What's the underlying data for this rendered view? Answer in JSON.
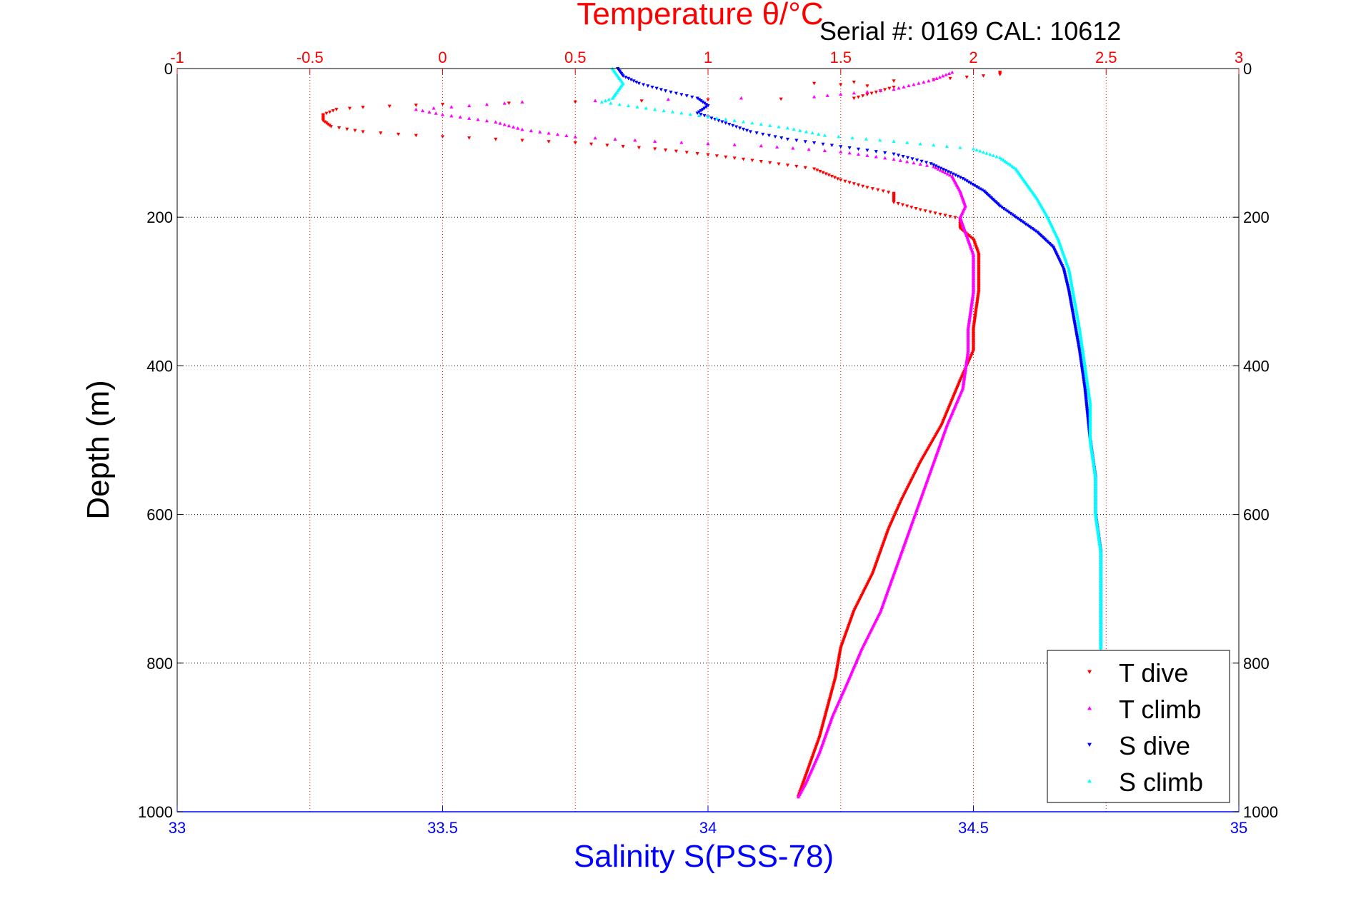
{
  "chart_data": {
    "type": "scatter",
    "title": "Temperature θ/°C",
    "subtitle": "Serial #: 0169 CAL: 10612",
    "xlabel": "Salinity S(PSS-78)",
    "x2label": "Temperature θ/°C",
    "ylabel": "Depth (m)",
    "xlim": [
      33,
      35
    ],
    "x2lim": [
      -1,
      3
    ],
    "ylim": [
      0,
      1000
    ],
    "y_reversed": true,
    "xticks": [
      "33",
      "33.5",
      "34",
      "34.5",
      "35"
    ],
    "x2ticks": [
      "-1",
      "-0.5",
      "0",
      "0.5",
      "1",
      "1.5",
      "2",
      "2.5",
      "3"
    ],
    "yticks": [
      "0",
      "200",
      "400",
      "600",
      "800",
      "1000"
    ],
    "grid": true,
    "legend_position": "bottom-right",
    "colors": {
      "temperature_axis": "#ff0000",
      "salinity_axis": "#0000ff"
    },
    "series": [
      {
        "name": "T dive",
        "axis": "temperature",
        "marker": "down-triangle",
        "color": "#ff0000",
        "points": [
          [
            2.1,
            5
          ],
          [
            2.1,
            8
          ],
          [
            1.85,
            15
          ],
          [
            1.4,
            20
          ],
          [
            1.7,
            25
          ],
          [
            1.55,
            40
          ],
          [
            1.0,
            42
          ],
          [
            0.5,
            45
          ],
          [
            0.0,
            48
          ],
          [
            -0.3,
            52
          ],
          [
            -0.4,
            55
          ],
          [
            -0.45,
            62
          ],
          [
            -0.45,
            70
          ],
          [
            -0.42,
            78
          ],
          [
            -0.3,
            85
          ],
          [
            -0.1,
            90
          ],
          [
            0.5,
            100
          ],
          [
            0.8,
            108
          ],
          [
            1.0,
            116
          ],
          [
            1.2,
            125
          ],
          [
            1.4,
            135
          ],
          [
            1.5,
            150
          ],
          [
            1.6,
            160
          ],
          [
            1.7,
            168
          ],
          [
            1.7,
            180
          ],
          [
            1.8,
            190
          ],
          [
            1.95,
            202
          ],
          [
            1.95,
            215
          ],
          [
            2.0,
            230
          ],
          [
            2.02,
            250
          ],
          [
            2.02,
            300
          ],
          [
            2.0,
            350
          ],
          [
            2.0,
            380
          ],
          [
            1.95,
            420
          ],
          [
            1.88,
            480
          ],
          [
            1.8,
            530
          ],
          [
            1.73,
            580
          ],
          [
            1.68,
            620
          ],
          [
            1.62,
            680
          ],
          [
            1.55,
            730
          ],
          [
            1.5,
            780
          ],
          [
            1.48,
            820
          ],
          [
            1.45,
            860
          ],
          [
            1.42,
            900
          ],
          [
            1.38,
            940
          ],
          [
            1.35,
            970
          ],
          [
            1.34,
            980
          ]
        ]
      },
      {
        "name": "T climb",
        "axis": "temperature",
        "marker": "up-triangle",
        "color": "#ff00ff",
        "points": [
          [
            1.92,
            5
          ],
          [
            1.85,
            15
          ],
          [
            1.7,
            28
          ],
          [
            1.4,
            38
          ],
          [
            0.3,
            45
          ],
          [
            -0.1,
            55
          ],
          [
            0.0,
            62
          ],
          [
            0.2,
            72
          ],
          [
            0.3,
            82
          ],
          [
            0.5,
            92
          ],
          [
            0.8,
            98
          ],
          [
            1.2,
            104
          ],
          [
            1.5,
            112
          ],
          [
            1.7,
            122
          ],
          [
            1.85,
            132
          ],
          [
            1.92,
            145
          ],
          [
            1.95,
            165
          ],
          [
            1.97,
            185
          ],
          [
            1.95,
            200
          ],
          [
            1.97,
            220
          ],
          [
            2.0,
            250
          ],
          [
            2.0,
            300
          ],
          [
            1.98,
            350
          ],
          [
            1.98,
            380
          ],
          [
            1.96,
            430
          ],
          [
            1.9,
            480
          ],
          [
            1.85,
            530
          ],
          [
            1.8,
            580
          ],
          [
            1.75,
            630
          ],
          [
            1.7,
            680
          ],
          [
            1.65,
            730
          ],
          [
            1.58,
            780
          ],
          [
            1.52,
            830
          ],
          [
            1.47,
            870
          ],
          [
            1.42,
            920
          ],
          [
            1.37,
            960
          ],
          [
            1.34,
            980
          ]
        ]
      },
      {
        "name": "S dive",
        "axis": "salinity",
        "marker": "down-triangle",
        "color": "#0000ff",
        "points": [
          [
            33.83,
            0
          ],
          [
            33.84,
            10
          ],
          [
            33.87,
            20
          ],
          [
            33.92,
            30
          ],
          [
            33.98,
            40
          ],
          [
            34.0,
            50
          ],
          [
            33.98,
            60
          ],
          [
            34.02,
            70
          ],
          [
            34.08,
            85
          ],
          [
            34.15,
            95
          ],
          [
            34.25,
            105
          ],
          [
            34.35,
            115
          ],
          [
            34.42,
            128
          ],
          [
            34.48,
            148
          ],
          [
            34.52,
            165
          ],
          [
            34.55,
            185
          ],
          [
            34.58,
            200
          ],
          [
            34.62,
            220
          ],
          [
            34.65,
            240
          ],
          [
            34.67,
            270
          ],
          [
            34.68,
            300
          ],
          [
            34.69,
            340
          ],
          [
            34.7,
            380
          ],
          [
            34.71,
            430
          ],
          [
            34.72,
            500
          ],
          [
            34.73,
            550
          ],
          [
            34.73,
            600
          ],
          [
            34.74,
            650
          ],
          [
            34.74,
            700
          ],
          [
            34.74,
            750
          ],
          [
            34.74,
            780
          ]
        ]
      },
      {
        "name": "S climb",
        "axis": "salinity",
        "marker": "up-triangle",
        "color": "#00ffff",
        "points": [
          [
            33.82,
            0
          ],
          [
            33.83,
            10
          ],
          [
            33.84,
            20
          ],
          [
            33.83,
            30
          ],
          [
            33.82,
            40
          ],
          [
            33.8,
            45
          ],
          [
            33.85,
            50
          ],
          [
            33.95,
            60
          ],
          [
            34.05,
            70
          ],
          [
            34.15,
            80
          ],
          [
            34.22,
            90
          ],
          [
            34.35,
            98
          ],
          [
            34.5,
            108
          ],
          [
            34.55,
            120
          ],
          [
            34.58,
            135
          ],
          [
            34.6,
            155
          ],
          [
            34.62,
            175
          ],
          [
            34.64,
            200
          ],
          [
            34.66,
            230
          ],
          [
            34.68,
            270
          ],
          [
            34.69,
            310
          ],
          [
            34.7,
            350
          ],
          [
            34.71,
            400
          ],
          [
            34.72,
            450
          ],
          [
            34.72,
            500
          ],
          [
            34.73,
            550
          ],
          [
            34.73,
            600
          ],
          [
            34.74,
            650
          ],
          [
            34.74,
            700
          ],
          [
            34.74,
            750
          ],
          [
            34.74,
            780
          ]
        ]
      }
    ],
    "legend": [
      {
        "label": "T dive",
        "color": "#ff0000",
        "marker": "down-triangle"
      },
      {
        "label": "T climb",
        "color": "#ff00ff",
        "marker": "up-triangle"
      },
      {
        "label": "S dive",
        "color": "#0000ff",
        "marker": "down-triangle"
      },
      {
        "label": "S climb",
        "color": "#00ffff",
        "marker": "up-triangle"
      }
    ]
  }
}
